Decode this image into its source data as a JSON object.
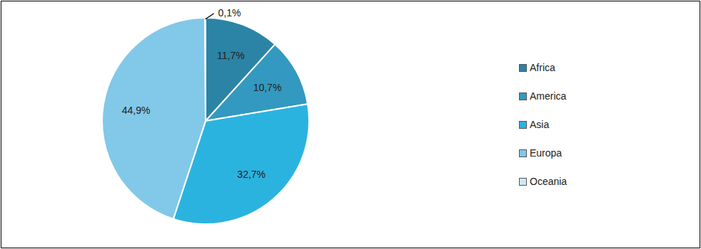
{
  "chart_data": {
    "type": "pie",
    "categories": [
      "Africa",
      "America",
      "Asia",
      "Europa",
      "Oceania"
    ],
    "values": [
      11.7,
      10.7,
      32.7,
      44.9,
      0.1
    ],
    "value_labels": [
      "11,7%",
      "10,7%",
      "32,7%",
      "44,9%",
      "0,1%"
    ],
    "colors": [
      "#2b84a6",
      "#3399c0",
      "#2bb3e0",
      "#82c8e8",
      "#cde9f5"
    ],
    "legend": "right",
    "data_labels": true
  }
}
